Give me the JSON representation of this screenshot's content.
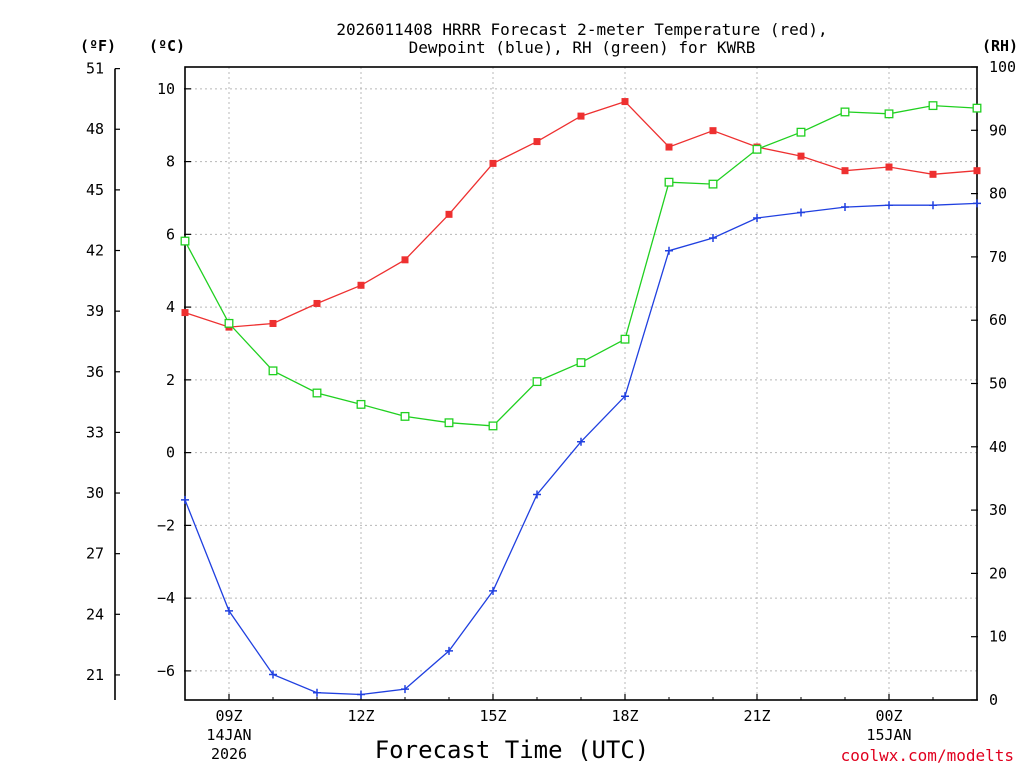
{
  "chart_data": {
    "type": "line",
    "title": [
      "2026011408 HRRR Forecast 2-meter Temperature (red),",
      "Dewpoint (blue), RH (green) for KWRB"
    ],
    "xlabel": "Forecast Time (UTC)",
    "credit": "coolwx.com/modelts",
    "units": {
      "fahrenheit": "(ºF)",
      "celsius": "(ºC)",
      "rh": "(RH)"
    },
    "x_hours": [
      8,
      9,
      10,
      11,
      12,
      13,
      14,
      15,
      16,
      17,
      18,
      19,
      20,
      21,
      22,
      23,
      24,
      25,
      26
    ],
    "xlim": [
      8,
      26
    ],
    "x_ticks": [
      {
        "hour": 9,
        "label": "09Z",
        "date": "14JAN",
        "year": "2026"
      },
      {
        "hour": 12,
        "label": "12Z",
        "date": "",
        "year": ""
      },
      {
        "hour": 15,
        "label": "15Z",
        "date": "",
        "year": ""
      },
      {
        "hour": 18,
        "label": "18Z",
        "date": "",
        "year": ""
      },
      {
        "hour": 21,
        "label": "21Z",
        "date": "",
        "year": ""
      },
      {
        "hour": 24,
        "label": "00Z",
        "date": "15JAN",
        "year": ""
      }
    ],
    "celsius_axis": {
      "ylim": [
        -6.8,
        10.6
      ],
      "ticks": [
        -6,
        -4,
        -2,
        0,
        2,
        4,
        6,
        8,
        10
      ],
      "labels": [
        "−6",
        "−4",
        "−2",
        "0",
        "2",
        "4",
        "6",
        "8",
        "10"
      ]
    },
    "fahrenheit_axis": {
      "ticks": [
        21,
        24,
        27,
        30,
        33,
        36,
        39,
        42,
        45,
        48,
        51
      ],
      "labels": [
        "21",
        "24",
        "27",
        "30",
        "33",
        "36",
        "39",
        "42",
        "45",
        "48",
        "51"
      ]
    },
    "rh_axis": {
      "ylim": [
        0,
        100
      ],
      "ticks": [
        0,
        10,
        20,
        30,
        40,
        50,
        60,
        70,
        80,
        90,
        100
      ],
      "labels": [
        "0",
        "10",
        "20",
        "30",
        "40",
        "50",
        "60",
        "70",
        "80",
        "90",
        "100"
      ]
    },
    "series": [
      {
        "name": "Temperature",
        "axis": "celsius",
        "color": "#ee3030",
        "marker": "filled-square",
        "values": [
          3.85,
          3.45,
          3.55,
          4.1,
          4.6,
          5.3,
          6.55,
          7.95,
          8.55,
          9.25,
          9.65,
          8.4,
          8.85,
          8.4,
          8.15,
          7.75,
          7.85,
          7.65,
          7.75
        ]
      },
      {
        "name": "Dewpoint",
        "axis": "celsius",
        "color": "#2040e0",
        "marker": "plus",
        "values": [
          -1.3,
          -4.35,
          -6.1,
          -6.6,
          -6.65,
          -6.5,
          -5.45,
          -3.8,
          -1.15,
          0.3,
          1.55,
          5.55,
          5.9,
          6.45,
          6.6,
          6.75,
          6.8,
          6.8,
          6.85
        ]
      },
      {
        "name": "RH",
        "axis": "rh",
        "color": "#20d020",
        "marker": "open-square",
        "values": [
          72.5,
          59.5,
          52.0,
          48.5,
          46.7,
          44.8,
          43.8,
          43.3,
          50.3,
          53.3,
          57.0,
          81.8,
          81.5,
          87.0,
          89.7,
          92.9,
          92.6,
          93.9,
          93.5
        ]
      }
    ]
  }
}
